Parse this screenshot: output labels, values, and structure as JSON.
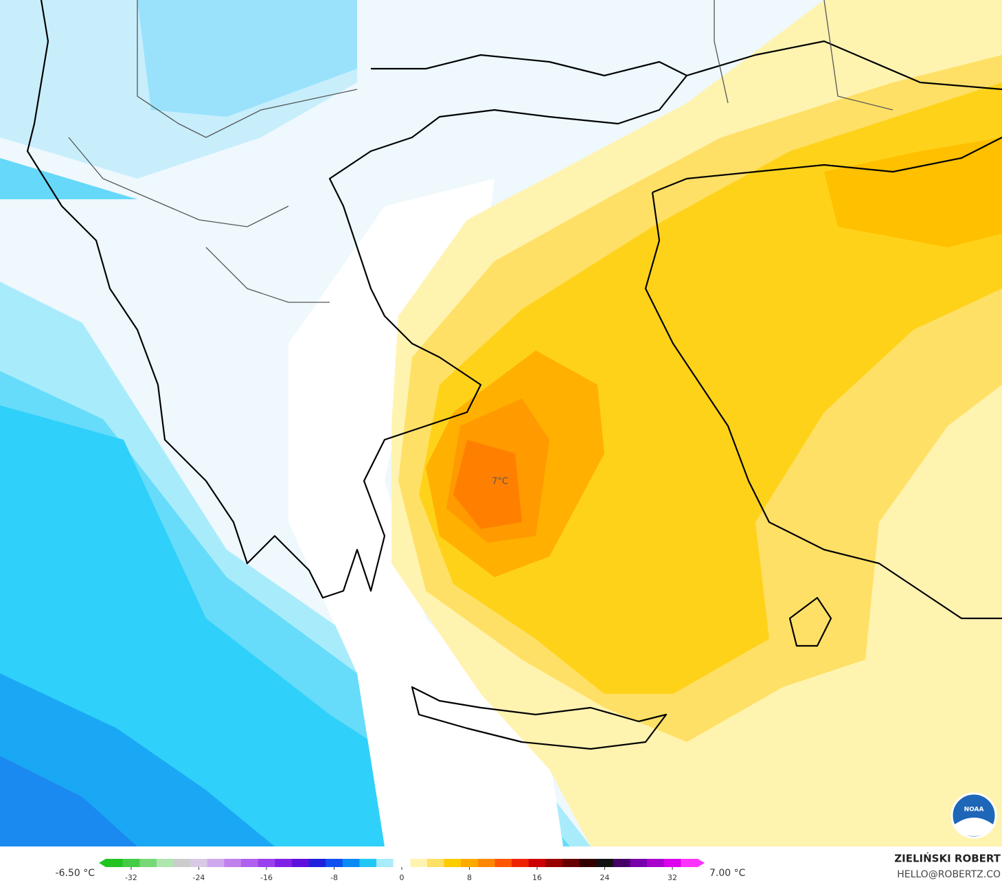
{
  "map": {
    "annotation": "7°C",
    "logo": "NOAA",
    "min_label": "-6.50 °C",
    "max_label": "7.00 °C",
    "credit": {
      "author": "ZIELIŃSKI ROBERT",
      "email": "HELLO@ROBERTZ.CO"
    },
    "colorbar": {
      "range": [
        -35,
        35
      ],
      "ticks": [
        -32,
        -24,
        -16,
        -8,
        0,
        8,
        16,
        24,
        32
      ],
      "colors": [
        "#22c422",
        "#44cc44",
        "#77d877",
        "#aee6ae",
        "#cccccc",
        "#d9c8e6",
        "#cfa8ee",
        "#c080ee",
        "#b060ee",
        "#9a40ee",
        "#8020e6",
        "#6010dd",
        "#2020dd",
        "#1050f0",
        "#0a8af5",
        "#20c8f5",
        "#a8ecfc",
        "#ffffff",
        "#fff3b0",
        "#ffe066",
        "#ffcc00",
        "#ffaa00",
        "#ff8800",
        "#ff5500",
        "#ee2200",
        "#cc0000",
        "#990000",
        "#660000",
        "#330000",
        "#111111",
        "#440066",
        "#7700aa",
        "#aa00cc",
        "#dd00ee",
        "#ff33ff"
      ]
    }
  }
}
